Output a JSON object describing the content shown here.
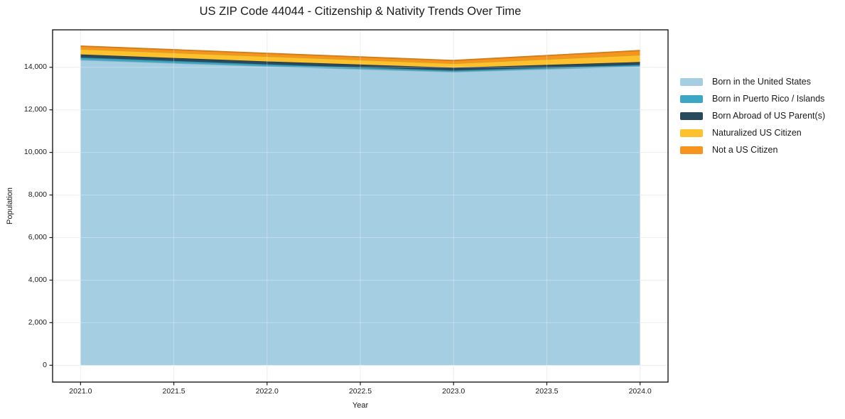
{
  "title": "US ZIP Code 44044 - Citizenship & Nativity Trends Over Time",
  "chart_data": {
    "type": "area",
    "stacked": true,
    "x": [
      2021,
      2022,
      2023,
      2024
    ],
    "series": [
      {
        "name": "Born in the United States",
        "color": "#a5cee2",
        "values": [
          14350,
          14050,
          13785,
          14050
        ]
      },
      {
        "name": "Born in Puerto Rico / Islands",
        "color": "#3ba7c4",
        "values": [
          110,
          90,
          65,
          65
        ]
      },
      {
        "name": "Born Abroad of US Parent(s)",
        "color": "#29495c",
        "values": [
          145,
          135,
          135,
          135
        ]
      },
      {
        "name": "Naturalized US Citizen",
        "color": "#fdc12d",
        "values": [
          255,
          245,
          200,
          335
        ]
      },
      {
        "name": "Not a US Citizen",
        "color": "#f7941e",
        "values": [
          135,
          135,
          135,
          200
        ]
      }
    ],
    "xlabel": "Year",
    "ylabel": "Population",
    "xlim": [
      2020.85,
      2024.15
    ],
    "ylim": [
      -790,
      15760
    ],
    "xticks": [
      2021.0,
      2021.5,
      2022.0,
      2022.5,
      2023.0,
      2023.5,
      2024.0
    ],
    "xtick_labels": [
      "2021.0",
      "2021.5",
      "2022.0",
      "2022.5",
      "2023.0",
      "2023.5",
      "2024.0"
    ],
    "yticks": [
      0,
      2000,
      4000,
      6000,
      8000,
      10000,
      12000,
      14000
    ],
    "ytick_labels": [
      "0",
      "2,000",
      "4,000",
      "6,000",
      "8,000",
      "10,000",
      "12,000",
      "14,000"
    ],
    "grid": true,
    "grid_color": "#e7e7e7",
    "spine_color": "#1a1a1a",
    "legend_position": "right"
  }
}
